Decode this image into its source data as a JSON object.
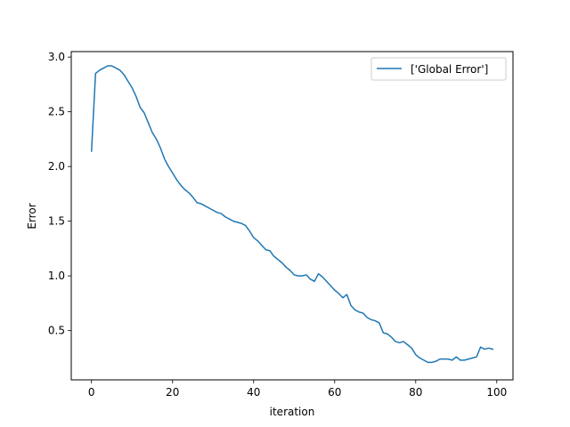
{
  "chart_data": {
    "type": "line",
    "xlabel": "iteration",
    "ylabel": "Error",
    "xlim": [
      -5,
      104
    ],
    "ylim": [
      0.05,
      3.05
    ],
    "x_ticks": [
      0,
      20,
      40,
      60,
      80,
      100
    ],
    "y_ticks": [
      0.5,
      1.0,
      1.5,
      2.0,
      2.5,
      3.0
    ],
    "x_tick_labels": [
      "0",
      "20",
      "40",
      "60",
      "80",
      "100"
    ],
    "y_tick_labels": [
      "0.5",
      "1.0",
      "1.5",
      "2.0",
      "2.5",
      "3.0"
    ],
    "grid": false,
    "legend_position": "top-right",
    "series": [
      {
        "name": "['Global Error']",
        "color": "#1f77b4",
        "x": [
          0,
          1,
          2,
          3,
          4,
          5,
          6,
          7,
          8,
          9,
          10,
          11,
          12,
          13,
          14,
          15,
          16,
          17,
          18,
          19,
          20,
          21,
          22,
          23,
          24,
          25,
          26,
          27,
          28,
          29,
          30,
          31,
          32,
          33,
          34,
          35,
          36,
          37,
          38,
          39,
          40,
          41,
          42,
          43,
          44,
          45,
          46,
          47,
          48,
          49,
          50,
          51,
          52,
          53,
          54,
          55,
          56,
          57,
          58,
          59,
          60,
          61,
          62,
          63,
          64,
          65,
          66,
          67,
          68,
          69,
          70,
          71,
          72,
          73,
          74,
          75,
          76,
          77,
          78,
          79,
          80,
          81,
          82,
          83,
          84,
          85,
          86,
          87,
          88,
          89,
          90,
          91,
          92,
          93,
          94,
          95,
          96,
          97,
          98,
          99
        ],
        "values": [
          2.14,
          2.85,
          2.88,
          2.9,
          2.92,
          2.92,
          2.9,
          2.88,
          2.84,
          2.78,
          2.72,
          2.64,
          2.54,
          2.49,
          2.4,
          2.31,
          2.25,
          2.17,
          2.07,
          2.0,
          1.94,
          1.88,
          1.83,
          1.79,
          1.76,
          1.72,
          1.67,
          1.66,
          1.64,
          1.62,
          1.6,
          1.58,
          1.57,
          1.54,
          1.52,
          1.5,
          1.49,
          1.48,
          1.46,
          1.41,
          1.35,
          1.32,
          1.28,
          1.24,
          1.23,
          1.18,
          1.15,
          1.12,
          1.08,
          1.05,
          1.01,
          1.0,
          1.0,
          1.01,
          0.97,
          0.95,
          1.02,
          0.99,
          0.95,
          0.91,
          0.87,
          0.84,
          0.8,
          0.83,
          0.73,
          0.69,
          0.67,
          0.66,
          0.62,
          0.6,
          0.59,
          0.57,
          0.48,
          0.47,
          0.44,
          0.4,
          0.39,
          0.4,
          0.37,
          0.34,
          0.28,
          0.25,
          0.23,
          0.21,
          0.21,
          0.22,
          0.24,
          0.24,
          0.24,
          0.23,
          0.26,
          0.23,
          0.23,
          0.24,
          0.25,
          0.26,
          0.35,
          0.33,
          0.34,
          0.33
        ]
      }
    ]
  }
}
